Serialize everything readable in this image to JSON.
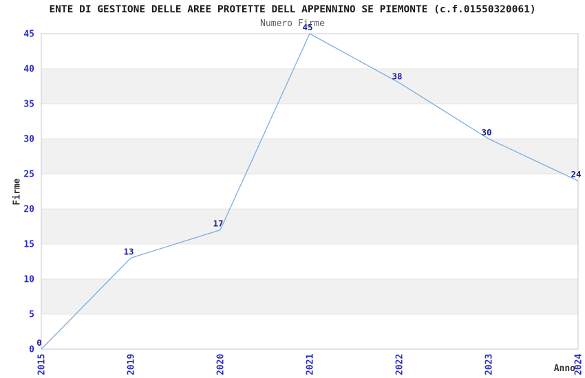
{
  "page": {
    "background": "#ffffff"
  },
  "chart_data": {
    "type": "line",
    "title": "ENTE DI GESTIONE DELLE AREE PROTETTE DELL APPENNINO SE PIEMONTE (c.f.01550320061)",
    "subtitle": "Numero Firme",
    "xlabel": "Anno",
    "ylabel": "Firme",
    "categories": [
      "2015",
      "2019",
      "2020",
      "2021",
      "2022",
      "2023",
      "2024"
    ],
    "series": [
      {
        "name": "Numero Firme",
        "values": [
          0,
          13,
          17,
          45,
          38,
          30,
          24
        ]
      }
    ],
    "data_labels": [
      "0",
      "13",
      "17",
      "45",
      "38",
      "30",
      "24"
    ],
    "ylim": [
      0,
      45
    ],
    "yticks": [
      0,
      5,
      10,
      15,
      20,
      25,
      30,
      35,
      40,
      45
    ],
    "grid": "horizontal-bands-alternating",
    "legend": "none",
    "x_tick_rotation_deg": 90,
    "colors": {
      "line": "#7aade4",
      "tick_label": "#2b2bc4",
      "data_label": "#1f1f8f",
      "band": "#f1f1f1",
      "gridline": "#e4e4e4",
      "plot_border": "#c9c9c9",
      "title": "#1a1a1a",
      "subtitle": "#5a5a5a",
      "axis_title": "#333333",
      "background": "#ffffff"
    }
  }
}
